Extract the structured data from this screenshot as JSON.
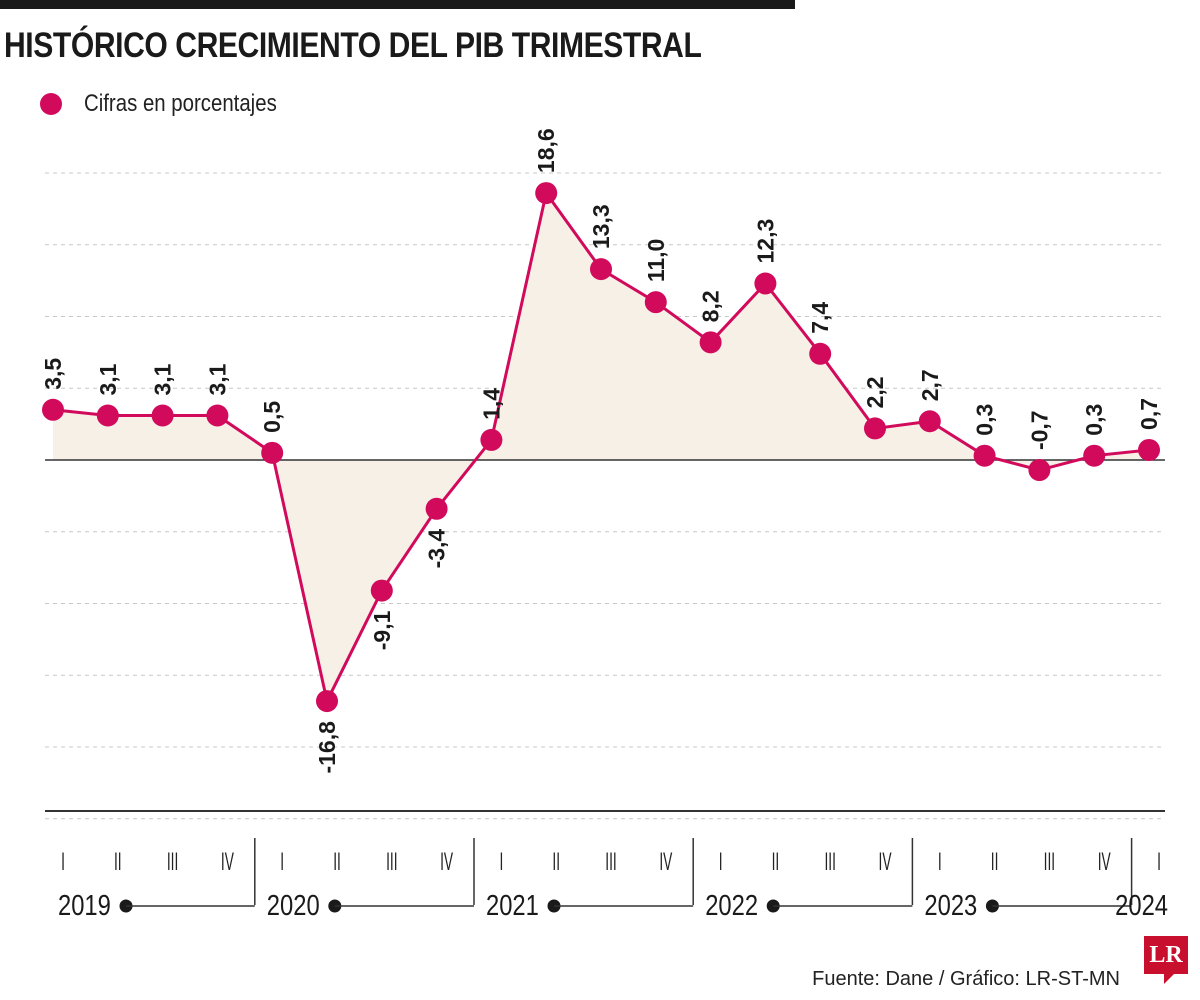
{
  "chart_data": {
    "type": "line",
    "title": "HISTÓRICO CRECIMIENTO DEL PIB TRIMESTRAL",
    "legend": "Cifras en porcentajes",
    "ylim": [
      -25,
      20
    ],
    "quarter_labels": [
      "I",
      "II",
      "III",
      "IV",
      "I",
      "II",
      "III",
      "IV",
      "I",
      "II",
      "III",
      "IV",
      "I",
      "II",
      "III",
      "IV",
      "I",
      "II",
      "III",
      "IV",
      "I"
    ],
    "years": [
      "2019",
      "2020",
      "2021",
      "2022",
      "2023",
      "2024"
    ],
    "values": [
      3.5,
      3.1,
      3.1,
      3.1,
      0.5,
      -16.8,
      -9.1,
      -3.4,
      1.4,
      18.6,
      13.3,
      11.0,
      8.2,
      12.3,
      7.4,
      2.2,
      2.7,
      0.3,
      -0.7,
      0.3,
      0.7
    ],
    "value_labels": [
      "3,5",
      "3,1",
      "3,1",
      "3,1",
      "0,5",
      "-16,8",
      "-9,1",
      "-3,4",
      "1,4",
      "18,6",
      "13,3",
      "11,0",
      "8,2",
      "12,3",
      "7,4",
      "2,2",
      "2,7",
      "0,3",
      "-0,7",
      "0,3",
      "0,7"
    ],
    "grid": true
  },
  "colors": {
    "line": "#d10a5c",
    "fill": "#f7f0e6",
    "axis": "#333333"
  },
  "footer": {
    "source": "Fuente: Dane / Gráfico: LR-ST-MN",
    "logo": "LR"
  }
}
